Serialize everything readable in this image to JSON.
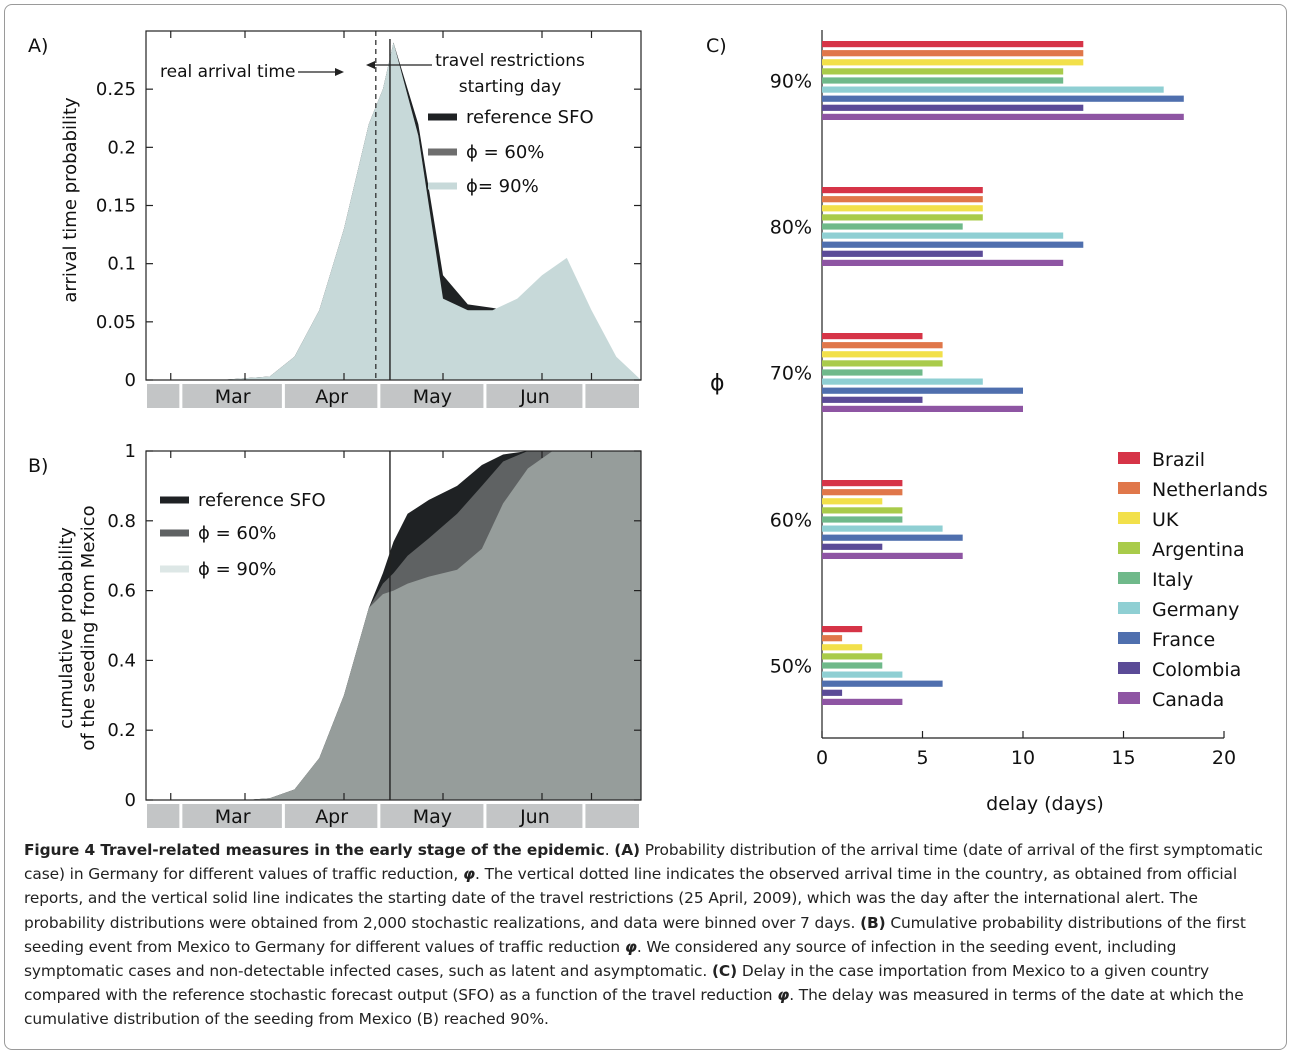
{
  "chart_data": [
    {
      "panel": "A)",
      "type": "area",
      "ylabel": "arrival time probability",
      "ylim": [
        0,
        0.3
      ],
      "yticks": [
        "0",
        "0.05",
        "0.1",
        "0.15",
        "0.2",
        "0.25"
      ],
      "months": [
        "Mar",
        "Apr",
        "May",
        "Jun"
      ],
      "annotations": {
        "real_arrival": "real arrival time",
        "travel_line1": "travel restrictions",
        "travel_line2": "starting day"
      },
      "legend": [
        "reference SFO",
        "ϕ = 60%",
        "ϕ= 90%"
      ],
      "x_days": [
        0,
        21,
        35,
        42,
        49,
        56,
        63,
        67,
        70,
        77,
        84,
        91,
        98,
        105,
        112,
        119,
        126,
        133,
        140
      ],
      "series": [
        {
          "name": "reference SFO",
          "color": "#1f2224",
          "values": [
            0,
            0,
            0.003,
            0.02,
            0.06,
            0.13,
            0.22,
            0.25,
            0.29,
            0.22,
            0.09,
            0.065,
            0.062,
            0.058,
            0.04,
            0.015,
            0,
            0,
            0
          ]
        },
        {
          "name": "ϕ = 60%",
          "color": "#6e6e6e",
          "values": [
            0,
            0,
            0.003,
            0.02,
            0.06,
            0.13,
            0.22,
            0.25,
            0.29,
            0.21,
            0.065,
            0.06,
            0.058,
            0.068,
            0.08,
            0.058,
            0.02,
            0,
            0
          ]
        },
        {
          "name": "ϕ= 90%",
          "color": "#c7d9d9",
          "values": [
            0,
            0,
            0.003,
            0.02,
            0.06,
            0.13,
            0.22,
            0.25,
            0.29,
            0.21,
            0.07,
            0.06,
            0.06,
            0.07,
            0.09,
            0.105,
            0.06,
            0.02,
            0
          ]
        }
      ],
      "vlines": {
        "real_arrival_day": 65,
        "travel_restrictions_day": 69
      }
    },
    {
      "panel": "B)",
      "type": "area",
      "ylabel": "cumulative probability of the seeding from Mexico",
      "ylabel_line1": "cumulative probability",
      "ylabel_line2": "of the seeding from Mexico",
      "ylim": [
        0,
        1
      ],
      "yticks": [
        "0",
        "0.2",
        "0.4",
        "0.6",
        "0.8",
        "1"
      ],
      "months": [
        "Mar",
        "Apr",
        "May",
        "Jun"
      ],
      "legend": [
        "reference SFO",
        "ϕ = 60%",
        "ϕ = 90%"
      ],
      "x_days": [
        0,
        28,
        35,
        42,
        49,
        56,
        63,
        67,
        70,
        74,
        80,
        88,
        95,
        101,
        108,
        115,
        122,
        140
      ],
      "series": [
        {
          "name": "reference SFO",
          "color": "#1f2224",
          "values": [
            0,
            0,
            0.005,
            0.03,
            0.12,
            0.3,
            0.55,
            0.65,
            0.74,
            0.82,
            0.86,
            0.9,
            0.96,
            0.99,
            1.0,
            1.0,
            1.0,
            1.0
          ]
        },
        {
          "name": "ϕ = 60%",
          "color": "#5f6263",
          "values": [
            0,
            0,
            0.005,
            0.03,
            0.12,
            0.3,
            0.55,
            0.62,
            0.65,
            0.7,
            0.75,
            0.82,
            0.9,
            0.97,
            1.0,
            1.0,
            1.0,
            1.0
          ]
        },
        {
          "name": "ϕ = 90%",
          "color": "#969d9b",
          "values": [
            0,
            0,
            0.005,
            0.03,
            0.12,
            0.3,
            0.55,
            0.59,
            0.6,
            0.62,
            0.64,
            0.66,
            0.72,
            0.85,
            0.95,
            1.0,
            1.0,
            1.0
          ]
        }
      ],
      "vlines": {
        "travel_restrictions_day": 69
      }
    },
    {
      "panel": "C)",
      "type": "bar",
      "orientation": "horizontal",
      "xlabel": "delay (days)",
      "ylabel": "ϕ",
      "xlim": [
        0,
        20
      ],
      "xticks": [
        "0",
        "5",
        "10",
        "15",
        "20"
      ],
      "groups": [
        "90%",
        "80%",
        "70%",
        "60%",
        "50%"
      ],
      "countries": [
        "Brazil",
        "Netherlands",
        "UK",
        "Argentina",
        "Italy",
        "Germany",
        "France",
        "Colombia",
        "Canada"
      ],
      "colors": [
        "#d63447",
        "#e0774a",
        "#f2e04a",
        "#a9cb4a",
        "#6fb98a",
        "#8fcfd3",
        "#4f6fae",
        "#5b4b97",
        "#8e55a3"
      ],
      "values": {
        "90%": [
          13,
          13,
          13,
          12,
          12,
          17,
          18,
          13,
          18
        ],
        "80%": [
          8,
          8,
          8,
          8,
          7,
          12,
          13,
          8,
          12
        ],
        "70%": [
          5,
          6,
          6,
          6,
          5,
          8,
          10,
          5,
          10
        ],
        "60%": [
          4,
          4,
          3,
          4,
          4,
          6,
          7,
          3,
          7
        ],
        "50%": [
          2,
          1,
          2,
          3,
          3,
          4,
          6,
          1,
          4
        ]
      },
      "grid": false,
      "legend_position": "right"
    }
  ],
  "caption": {
    "lead": "Figure 4 Travel-related measures in the early stage of the epidemic",
    "pA": "(A)",
    "tA1": " Probability distribution of the arrival time (date of arrival of the first symptomatic case) in Germany for different values of traffic reduction, ",
    "phi": "φ",
    "tA2": ". The vertical dotted line indicates the observed arrival time in the country, as obtained from official reports, and the vertical solid line indicates the starting date of the travel restrictions (25 April, 2009), which was the day after the international alert. The probability distributions were obtained from 2,000 stochastic realizations, and data were binned over 7 days. ",
    "pB": "(B)",
    "tB1": " Cumulative probability distributions of the first seeding event from Mexico to Germany for different values of traffic reduction ",
    "tB2": ". We considered any source of infection in the seeding event, including symptomatic cases and non-detectable infected cases, such as latent and asymptomatic. ",
    "pC": "(C)",
    "tC1": " Delay in the case importation from Mexico to a given country compared with the reference stochastic forecast output (SFO) as a function of the travel reduction ",
    "tC2": ". The delay was measured in terms of the date at which the cumulative distribution of the seeding from Mexico (B) reached 90%."
  }
}
